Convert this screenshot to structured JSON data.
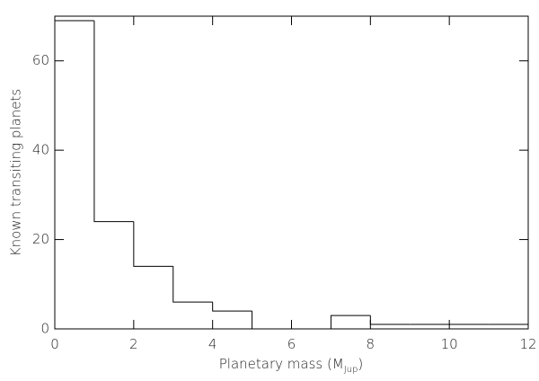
{
  "chart_data": {
    "type": "histogram",
    "xlabel": [
      "Planetary mass (M",
      "Jup",
      ")"
    ],
    "ylabel": "Known transiting planets",
    "bins": [
      0,
      1,
      2,
      3,
      4,
      5,
      6,
      7,
      8,
      9,
      10,
      11,
      12
    ],
    "values": [
      69,
      24,
      14,
      6,
      4,
      0,
      0,
      3,
      1,
      1,
      1,
      1
    ],
    "color": "#000000",
    "xlim": [
      0,
      12
    ],
    "xticks": [
      0,
      2,
      4,
      6,
      8,
      10,
      12
    ],
    "ylim": [
      0,
      70
    ],
    "yticks": [
      0,
      20,
      40,
      60
    ]
  }
}
